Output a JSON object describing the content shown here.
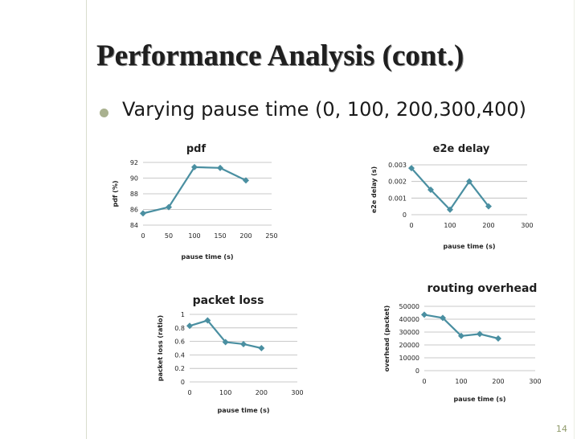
{
  "slide": {
    "title": "Performance Analysis (cont.)",
    "bullet": "Varying pause time (0, 100, 200,300,400)",
    "page_number": "14",
    "accent_color": "#a9b18f",
    "series_color": "#4a8fa1"
  },
  "chart_data": [
    {
      "id": "pdf",
      "type": "line",
      "title": "pdf",
      "xlabel": "pause time (s)",
      "ylabel": "pdf (%)",
      "x": [
        0,
        50,
        100,
        150,
        200
      ],
      "series": [
        {
          "name": "pdf",
          "values": [
            85.5,
            86.3,
            91.4,
            91.3,
            89.7
          ]
        }
      ],
      "xlim": [
        0,
        250
      ],
      "ylim": [
        84,
        92
      ],
      "xticks": [
        0,
        50,
        100,
        150,
        200,
        250
      ],
      "yticks": [
        84,
        86,
        88,
        90,
        92
      ],
      "xtick_labels": [
        "0",
        "50",
        "100",
        "150",
        "200",
        "250"
      ],
      "ytick_labels": [
        "84",
        "86",
        "88",
        "90",
        "92"
      ],
      "grid": true
    },
    {
      "id": "e2e",
      "type": "line",
      "title": "e2e delay",
      "xlabel": "pause time (s)",
      "ylabel": "e2e delay (s)",
      "x": [
        0,
        50,
        100,
        150,
        200
      ],
      "series": [
        {
          "name": "e2e delay",
          "values": [
            0.0028,
            0.0015,
            0.0003,
            0.002,
            0.0005
          ]
        }
      ],
      "xlim": [
        0,
        300
      ],
      "ylim": [
        0,
        0.003
      ],
      "xticks": [
        0,
        100,
        200,
        300
      ],
      "yticks": [
        0,
        0.001,
        0.002,
        0.003
      ],
      "xtick_labels": [
        "0",
        "100",
        "200",
        "300"
      ],
      "ytick_labels": [
        "0",
        "0.001",
        "0.002",
        "0.003"
      ],
      "grid": true
    },
    {
      "id": "packetloss",
      "type": "line",
      "title": "packet loss",
      "xlabel": "pause time (s)",
      "ylabel": "packet loss (ratio)",
      "x": [
        0,
        50,
        100,
        150,
        200
      ],
      "series": [
        {
          "name": "packet loss",
          "values": [
            0.83,
            0.91,
            0.59,
            0.56,
            0.5
          ]
        }
      ],
      "xlim": [
        0,
        300
      ],
      "ylim": [
        0,
        1
      ],
      "xticks": [
        0,
        100,
        200,
        300
      ],
      "yticks": [
        0,
        0.2,
        0.4,
        0.6,
        0.8,
        1
      ],
      "xtick_labels": [
        "0",
        "100",
        "200",
        "300"
      ],
      "ytick_labels": [
        "0",
        "0.2",
        "0.4",
        "0.6",
        "0.8",
        "1"
      ],
      "grid": true
    },
    {
      "id": "overhead",
      "type": "line",
      "title": "routing overhead",
      "xlabel": "pause time (s)",
      "ylabel": "overhead (packet)",
      "x": [
        0,
        50,
        100,
        150,
        200
      ],
      "series": [
        {
          "name": "routing overhead",
          "values": [
            43500,
            41000,
            27000,
            28500,
            25000
          ]
        }
      ],
      "xlim": [
        0,
        300
      ],
      "ylim": [
        0,
        50000
      ],
      "xticks": [
        0,
        100,
        200,
        300
      ],
      "yticks": [
        0,
        10000,
        20000,
        30000,
        40000,
        50000
      ],
      "xtick_labels": [
        "0",
        "100",
        "200",
        "300"
      ],
      "ytick_labels": [
        "0",
        "10000",
        "20000",
        "30000",
        "40000",
        "50000"
      ],
      "grid": true
    }
  ]
}
